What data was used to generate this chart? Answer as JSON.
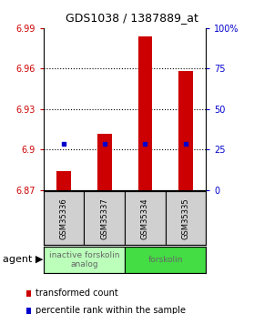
{
  "title": "GDS1038 / 1387889_at",
  "samples": [
    "GSM35336",
    "GSM35337",
    "GSM35334",
    "GSM35335"
  ],
  "bar_values": [
    6.884,
    6.912,
    6.984,
    6.958
  ],
  "bar_base": 6.87,
  "percentile_values": [
    6.904,
    6.904,
    6.904,
    6.904
  ],
  "ylim": [
    6.87,
    6.99
  ],
  "yticks_left": [
    6.87,
    6.9,
    6.93,
    6.96,
    6.99
  ],
  "yticks_right_pct": [
    0,
    25,
    50,
    75,
    100
  ],
  "bar_color": "#cc0000",
  "percentile_color": "#0000cc",
  "agent_groups": [
    {
      "label": "inactive forskolin\nanalog",
      "color": "#bbffbb",
      "span": [
        0,
        2
      ]
    },
    {
      "label": "forskolin",
      "color": "#44dd44",
      "span": [
        2,
        4
      ]
    }
  ],
  "legend_items": [
    {
      "label": "transformed count",
      "color": "#cc0000"
    },
    {
      "label": "percentile rank within the sample",
      "color": "#0000cc"
    }
  ],
  "sample_box_color": "#d0d0d0",
  "background_color": "#ffffff",
  "tick_label_color_left": "#cc0000",
  "tick_label_color_right": "#0000cc",
  "grid_color": "#000000",
  "grid_linestyle": "dotted",
  "grid_linewidth": 0.8,
  "bar_width": 0.35,
  "title_fontsize": 9,
  "tick_fontsize": 7,
  "sample_fontsize": 6,
  "agent_fontsize": 6.5,
  "legend_fontsize": 7,
  "agent_text_color": "#666666"
}
